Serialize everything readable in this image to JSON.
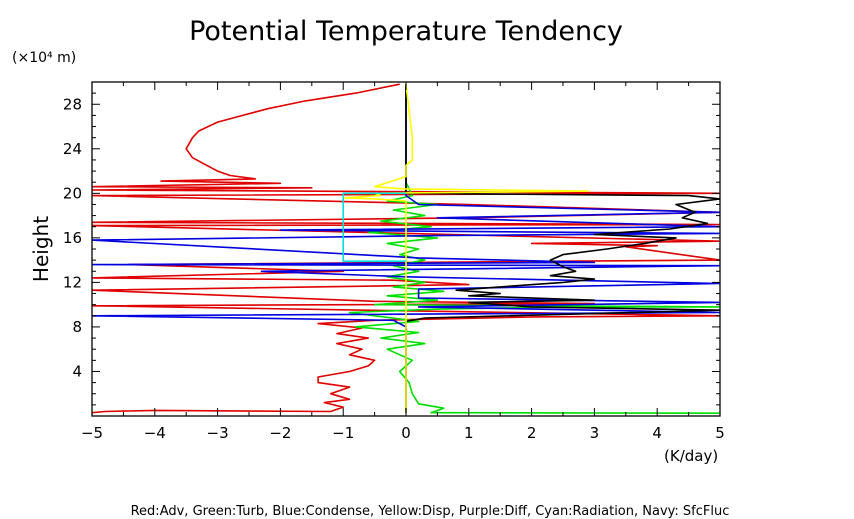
{
  "chart_data": {
    "type": "line",
    "title": "Potential Temperature Tendency",
    "xlabel": "(K/day)",
    "ylabel": "Height",
    "y_unit": "(×10⁴ m)",
    "caption": "Red:Adv, Green:Turb, Blue:Condense, Yellow:Disp, Purple:Diff, Cyan:Radiation, Navy: SfcFluc",
    "xlim": [
      -5,
      5
    ],
    "ylim": [
      0,
      30
    ],
    "xticks": [
      -5,
      -4,
      -3,
      -2,
      -1,
      0,
      1,
      2,
      3,
      4,
      5
    ],
    "yticks": [
      4,
      8,
      12,
      16,
      20,
      24,
      28
    ],
    "grid": false,
    "series": [
      {
        "color": "#e00000",
        "points": [
          [
            -5,
            0.3
          ],
          [
            -4.8,
            0.4
          ],
          [
            -4.0,
            0.5
          ],
          [
            -1.2,
            0.4
          ],
          [
            -1.0,
            0.8
          ],
          [
            -1.3,
            1.2
          ],
          [
            -0.9,
            1.5
          ],
          [
            -1.2,
            2.0
          ],
          [
            -0.9,
            2.6
          ],
          [
            -1.4,
            3.0
          ],
          [
            -1.4,
            3.5
          ],
          [
            -0.9,
            4.0
          ],
          [
            -0.6,
            4.5
          ],
          [
            -0.5,
            5.0
          ],
          [
            -0.9,
            5.5
          ],
          [
            -0.7,
            6.0
          ],
          [
            -1.1,
            6.5
          ],
          [
            -0.6,
            7.0
          ],
          [
            -1.1,
            7.4
          ],
          [
            -0.7,
            7.9
          ],
          [
            -1.4,
            8.3
          ],
          [
            -0.5,
            8.6
          ],
          [
            2.0,
            8.9
          ],
          [
            5.0,
            9.0
          ],
          [
            -5.0,
            9.9
          ],
          [
            3.0,
            10.1
          ],
          [
            -0.5,
            10.3
          ],
          [
            -5.0,
            11.3
          ],
          [
            1.0,
            11.8
          ],
          [
            -0.2,
            12.2
          ],
          [
            -5.0,
            12.4
          ],
          [
            -1.0,
            13.0
          ],
          [
            -4.4,
            13.6
          ],
          [
            2.5,
            13.9
          ],
          [
            5.0,
            14.0
          ],
          [
            3.5,
            15.2
          ],
          [
            4.0,
            15.3
          ],
          [
            2.0,
            15.5
          ],
          [
            5.0,
            15.7
          ],
          [
            -5.0,
            17.1
          ],
          [
            5.0,
            17.2
          ],
          [
            -5.0,
            17.4
          ],
          [
            1.0,
            17.8
          ],
          [
            5.0,
            18.3
          ],
          [
            1.0,
            19.0
          ],
          [
            -5.0,
            19.8
          ],
          [
            5.0,
            20.0
          ],
          [
            -5.0,
            20.3
          ],
          [
            -1.5,
            20.5
          ],
          [
            -5.0,
            20.6
          ],
          [
            -2.0,
            20.9
          ],
          [
            -3.9,
            21.1
          ],
          [
            -2.4,
            21.3
          ],
          [
            -2.8,
            21.6
          ],
          [
            -3.0,
            22.0
          ],
          [
            -3.2,
            22.6
          ],
          [
            -3.4,
            23.2
          ],
          [
            -3.5,
            24.0
          ],
          [
            -3.4,
            25.0
          ],
          [
            -3.3,
            25.6
          ],
          [
            -3.0,
            26.4
          ],
          [
            -2.6,
            27.0
          ],
          [
            -2.2,
            27.6
          ],
          [
            -1.6,
            28.3
          ],
          [
            -0.8,
            29.0
          ],
          [
            -0.1,
            29.8
          ]
        ]
      },
      {
        "color": "#00e000",
        "points": [
          [
            5.0,
            0.25
          ],
          [
            0.4,
            0.3
          ],
          [
            0.6,
            0.7
          ],
          [
            0.2,
            1.1
          ],
          [
            0.1,
            2.0
          ],
          [
            0.05,
            3.0
          ],
          [
            -0.1,
            4.0
          ],
          [
            0.1,
            5.0
          ],
          [
            -0.3,
            6.0
          ],
          [
            0.3,
            6.5
          ],
          [
            -0.4,
            7.0
          ],
          [
            0.2,
            7.5
          ],
          [
            -0.8,
            8.0
          ],
          [
            0.2,
            8.5
          ],
          [
            -0.5,
            9.0
          ],
          [
            -0.9,
            9.3
          ],
          [
            0.5,
            9.6
          ],
          [
            2.5,
            9.8
          ],
          [
            5.0,
            9.8
          ],
          [
            -0.5,
            10.0
          ],
          [
            0.5,
            10.4
          ],
          [
            -0.3,
            10.8
          ],
          [
            0.6,
            11.2
          ],
          [
            -0.2,
            11.6
          ],
          [
            0.3,
            12.0
          ],
          [
            -0.3,
            12.5
          ],
          [
            0.2,
            13.0
          ],
          [
            -0.2,
            13.5
          ],
          [
            0.3,
            14.0
          ],
          [
            -0.1,
            14.5
          ],
          [
            0.2,
            15.0
          ],
          [
            -0.3,
            15.5
          ],
          [
            0.5,
            16.0
          ],
          [
            -0.6,
            16.5
          ],
          [
            0.4,
            17.0
          ],
          [
            -0.4,
            17.5
          ],
          [
            0.3,
            18.0
          ],
          [
            -0.2,
            18.5
          ],
          [
            0.5,
            19.0
          ],
          [
            -0.3,
            19.3
          ],
          [
            0.1,
            19.8
          ],
          [
            0.0,
            21.0
          ],
          [
            0.0,
            29.8
          ]
        ]
      },
      {
        "color": "#0000e0",
        "points": [
          [
            0.0,
            0.3
          ],
          [
            0.0,
            3.0
          ],
          [
            0.0,
            8.0
          ],
          [
            -0.2,
            8.6
          ],
          [
            -5.0,
            9.0
          ],
          [
            5.0,
            9.3
          ],
          [
            0.2,
            9.8
          ],
          [
            5.0,
            10.2
          ],
          [
            0.2,
            10.6
          ],
          [
            0.2,
            11.4
          ],
          [
            5.0,
            11.9
          ],
          [
            0.0,
            12.5
          ],
          [
            -2.3,
            13.0
          ],
          [
            5.0,
            13.5
          ],
          [
            -5.0,
            13.6
          ],
          [
            3.0,
            13.8
          ],
          [
            0.2,
            14.2
          ],
          [
            -5.0,
            15.8
          ],
          [
            0.5,
            16.2
          ],
          [
            5.0,
            16.4
          ],
          [
            -2.0,
            16.7
          ],
          [
            5.0,
            17.0
          ],
          [
            0.5,
            17.8
          ],
          [
            5.0,
            18.3
          ],
          [
            0.2,
            19.0
          ],
          [
            0.0,
            19.8
          ],
          [
            0.0,
            29.8
          ]
        ]
      },
      {
        "color": "#000000",
        "points": [
          [
            0.0,
            0.3
          ],
          [
            0.0,
            8.5
          ],
          [
            0.3,
            8.8
          ],
          [
            3.0,
            9.2
          ],
          [
            5.0,
            9.5
          ],
          [
            2.0,
            9.8
          ],
          [
            1.0,
            10.2
          ],
          [
            3.0,
            10.4
          ],
          [
            1.0,
            10.8
          ],
          [
            1.5,
            11.0
          ],
          [
            0.8,
            11.3
          ],
          [
            1.5,
            11.6
          ],
          [
            2.5,
            12.0
          ],
          [
            3.0,
            12.3
          ],
          [
            2.3,
            12.6
          ],
          [
            2.7,
            13.0
          ],
          [
            2.5,
            13.4
          ],
          [
            2.3,
            14.0
          ],
          [
            2.5,
            14.5
          ],
          [
            3.2,
            15.0
          ],
          [
            3.8,
            15.5
          ],
          [
            4.3,
            16.0
          ],
          [
            3.0,
            16.3
          ],
          [
            4.2,
            16.8
          ],
          [
            4.8,
            17.3
          ],
          [
            4.4,
            17.8
          ],
          [
            4.6,
            18.3
          ],
          [
            4.3,
            19.0
          ],
          [
            5.0,
            19.5
          ],
          [
            4.5,
            19.8
          ],
          [
            0.0,
            20.0
          ],
          [
            0.0,
            29.8
          ]
        ]
      },
      {
        "color": "#ffff00",
        "points": [
          [
            0.0,
            0.3
          ],
          [
            0.0,
            19.3
          ],
          [
            -0.5,
            19.5
          ],
          [
            -1.0,
            19.6
          ],
          [
            -0.4,
            19.8
          ],
          [
            -0.5,
            20.0
          ],
          [
            2.9,
            20.2
          ],
          [
            0.0,
            20.4
          ],
          [
            -0.5,
            20.6
          ],
          [
            0.0,
            21.5
          ],
          [
            0.0,
            22.5
          ],
          [
            0.1,
            23.0
          ],
          [
            0.1,
            24.0
          ],
          [
            0.1,
            25.0
          ],
          [
            0.0,
            29.8
          ]
        ]
      },
      {
        "color": "#00e0e0",
        "points": [
          [
            0.0,
            13.9
          ],
          [
            -1.0,
            13.9
          ],
          [
            -1.0,
            20.0
          ],
          [
            0.0,
            20.0
          ]
        ]
      }
    ]
  }
}
